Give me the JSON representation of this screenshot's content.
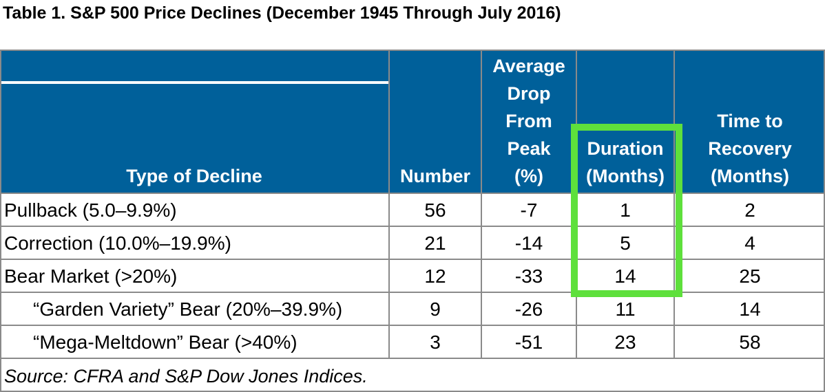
{
  "title": "Table 1. S&P 500 Price Declines (December 1945 Through July 2016)",
  "headers": {
    "type": "Type of Decline",
    "number": "Number",
    "avg_drop": "Average\nDrop\nFrom\nPeak\n(%)",
    "duration": "Duration\n(Months)",
    "recovery": "Time to\nRecovery\n(Months)"
  },
  "rows": [
    {
      "type": "Pullback (5.0–9.9%)",
      "number": "56",
      "avg_drop": "-7",
      "duration": "1",
      "recovery": "2"
    },
    {
      "type": "Correction (10.0%–19.9%)",
      "number": "21",
      "avg_drop": "-14",
      "duration": "5",
      "recovery": "4"
    },
    {
      "type": "Bear Market (>20%)",
      "number": "12",
      "avg_drop": "-33",
      "duration": "14",
      "recovery": "25"
    },
    {
      "type": "“Garden Variety” Bear (20%–39.9%)",
      "number": "9",
      "avg_drop": "-26",
      "duration": "11",
      "recovery": "14"
    },
    {
      "type": "“Mega-Meltdown” Bear (>40%)",
      "number": "3",
      "avg_drop": "-51",
      "duration": "23",
      "recovery": "58"
    }
  ],
  "source": "Source: CFRA and S&P Dow Jones Indices.",
  "colors": {
    "header_bg": "#00609a",
    "highlight": "#5ee03c"
  }
}
